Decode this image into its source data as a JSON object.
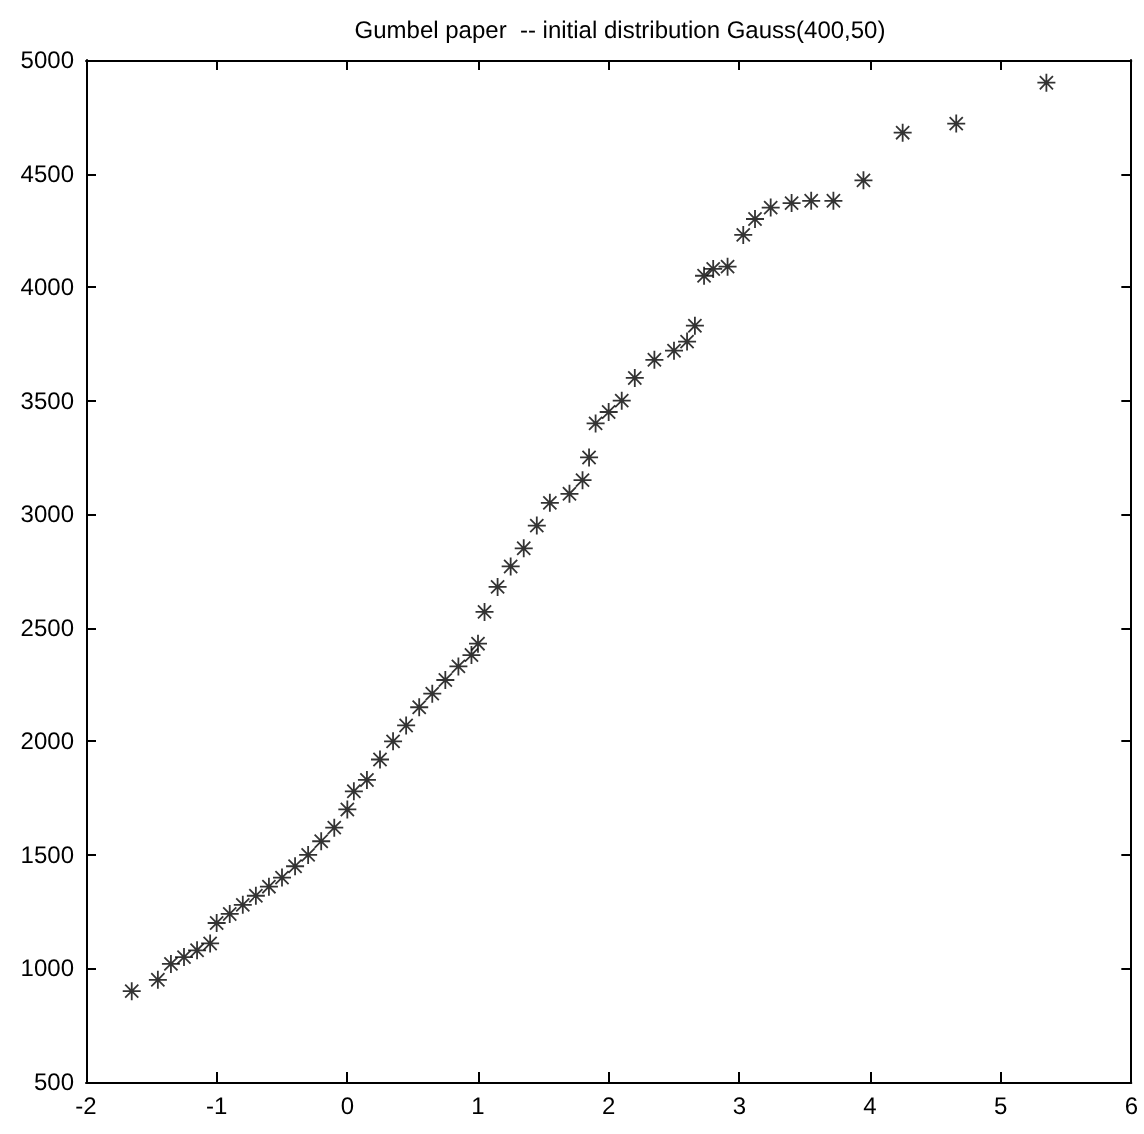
{
  "chart_data": {
    "type": "scatter",
    "title": "Gumbel paper  -- initial distribution Gauss(400,50)",
    "x": [
      -1.65,
      -1.45,
      -1.35,
      -1.25,
      -1.15,
      -1.05,
      -1.0,
      -0.9,
      -0.8,
      -0.7,
      -0.6,
      -0.5,
      -0.4,
      -0.3,
      -0.2,
      -0.1,
      0,
      0.05,
      0.15,
      0.25,
      0.35,
      0.45,
      0.55,
      0.65,
      0.75,
      0.85,
      0.95,
      1.0,
      1.05,
      1.15,
      1.25,
      1.35,
      1.45,
      1.55,
      1.7,
      1.8,
      1.85,
      1.9,
      2.0,
      2.1,
      2.2,
      2.35,
      2.5,
      2.6,
      2.66,
      2.73,
      2.8,
      2.91,
      3.03,
      3.12,
      3.24,
      3.4,
      3.55,
      3.72,
      3.95,
      4.25,
      4.66,
      5.35
    ],
    "series": [
      {
        "color": "#000000",
        "values": [
          900,
          950,
          1020,
          1050,
          1080,
          1110,
          1200,
          1240,
          1280,
          1320,
          1360,
          1400,
          1450,
          1500,
          1560,
          1620,
          1700,
          1780,
          1830,
          1920,
          2000,
          2070,
          2150,
          2210,
          2270,
          2330,
          2380,
          2430,
          2570,
          2680,
          2770,
          2850,
          2950,
          3050,
          3090,
          3150,
          3250,
          3400,
          3450,
          3500,
          3600,
          3680,
          3720,
          3760,
          3830,
          4050,
          4080,
          4090,
          4230,
          4300,
          4350,
          4370,
          4380,
          4380,
          4470,
          4680,
          4720,
          4900
        ]
      }
    ],
    "xlim": [
      -2,
      6
    ],
    "xticks": [
      -2,
      -1,
      0,
      1,
      2,
      3,
      4,
      5,
      6
    ],
    "ylim": [
      500,
      5000
    ],
    "yticks": [
      500,
      1000,
      1500,
      2000,
      2500,
      3000,
      3500,
      4000,
      4500,
      5000
    ],
    "grid": false,
    "marker": "star"
  }
}
